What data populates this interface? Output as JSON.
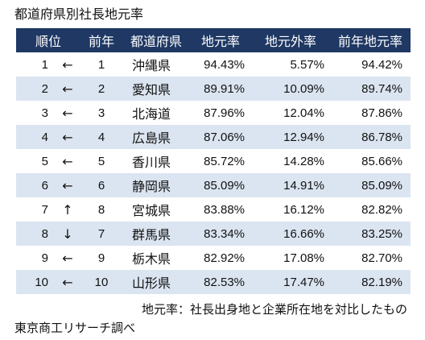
{
  "colors": {
    "header_background": "#1f3864",
    "header_text": "#ffffff",
    "row_stripe": "#dbe5f1",
    "row_background": "#ffffff",
    "text": "#111111"
  },
  "chart_data": {
    "type": "table",
    "title": "都道府県別社長地元率",
    "headers": {
      "rank": "順位",
      "prev_rank": "前年",
      "prefecture": "都道府県",
      "local_rate": "地元率",
      "nonlocal_rate": "地元外率",
      "prev_local_rate": "前年地元率"
    },
    "rows": [
      {
        "rank": 1,
        "trend": "←",
        "prev_rank": 1,
        "prefecture": "沖縄県",
        "local_rate": "94.43%",
        "nonlocal_rate": "5.57%",
        "prev_local_rate": "94.42%"
      },
      {
        "rank": 2,
        "trend": "←",
        "prev_rank": 2,
        "prefecture": "愛知県",
        "local_rate": "89.91%",
        "nonlocal_rate": "10.09%",
        "prev_local_rate": "89.74%"
      },
      {
        "rank": 3,
        "trend": "←",
        "prev_rank": 3,
        "prefecture": "北海道",
        "local_rate": "87.96%",
        "nonlocal_rate": "12.04%",
        "prev_local_rate": "87.86%"
      },
      {
        "rank": 4,
        "trend": "←",
        "prev_rank": 4,
        "prefecture": "広島県",
        "local_rate": "87.06%",
        "nonlocal_rate": "12.94%",
        "prev_local_rate": "86.78%"
      },
      {
        "rank": 5,
        "trend": "←",
        "prev_rank": 5,
        "prefecture": "香川県",
        "local_rate": "85.72%",
        "nonlocal_rate": "14.28%",
        "prev_local_rate": "85.66%"
      },
      {
        "rank": 6,
        "trend": "←",
        "prev_rank": 6,
        "prefecture": "静岡県",
        "local_rate": "85.09%",
        "nonlocal_rate": "14.91%",
        "prev_local_rate": "85.09%"
      },
      {
        "rank": 7,
        "trend": "↑",
        "prev_rank": 8,
        "prefecture": "宮城県",
        "local_rate": "83.88%",
        "nonlocal_rate": "16.12%",
        "prev_local_rate": "82.82%"
      },
      {
        "rank": 8,
        "trend": "↓",
        "prev_rank": 7,
        "prefecture": "群馬県",
        "local_rate": "83.34%",
        "nonlocal_rate": "16.66%",
        "prev_local_rate": "83.25%"
      },
      {
        "rank": 9,
        "trend": "←",
        "prev_rank": 9,
        "prefecture": "栃木県",
        "local_rate": "82.92%",
        "nonlocal_rate": "17.08%",
        "prev_local_rate": "82.70%"
      },
      {
        "rank": 10,
        "trend": "←",
        "prev_rank": 10,
        "prefecture": "山形県",
        "local_rate": "82.53%",
        "nonlocal_rate": "17.47%",
        "prev_local_rate": "82.19%"
      }
    ],
    "note": "地元率：社長出身地と企業所在地を対比したもの",
    "source": "東京商工リサーチ調べ"
  }
}
